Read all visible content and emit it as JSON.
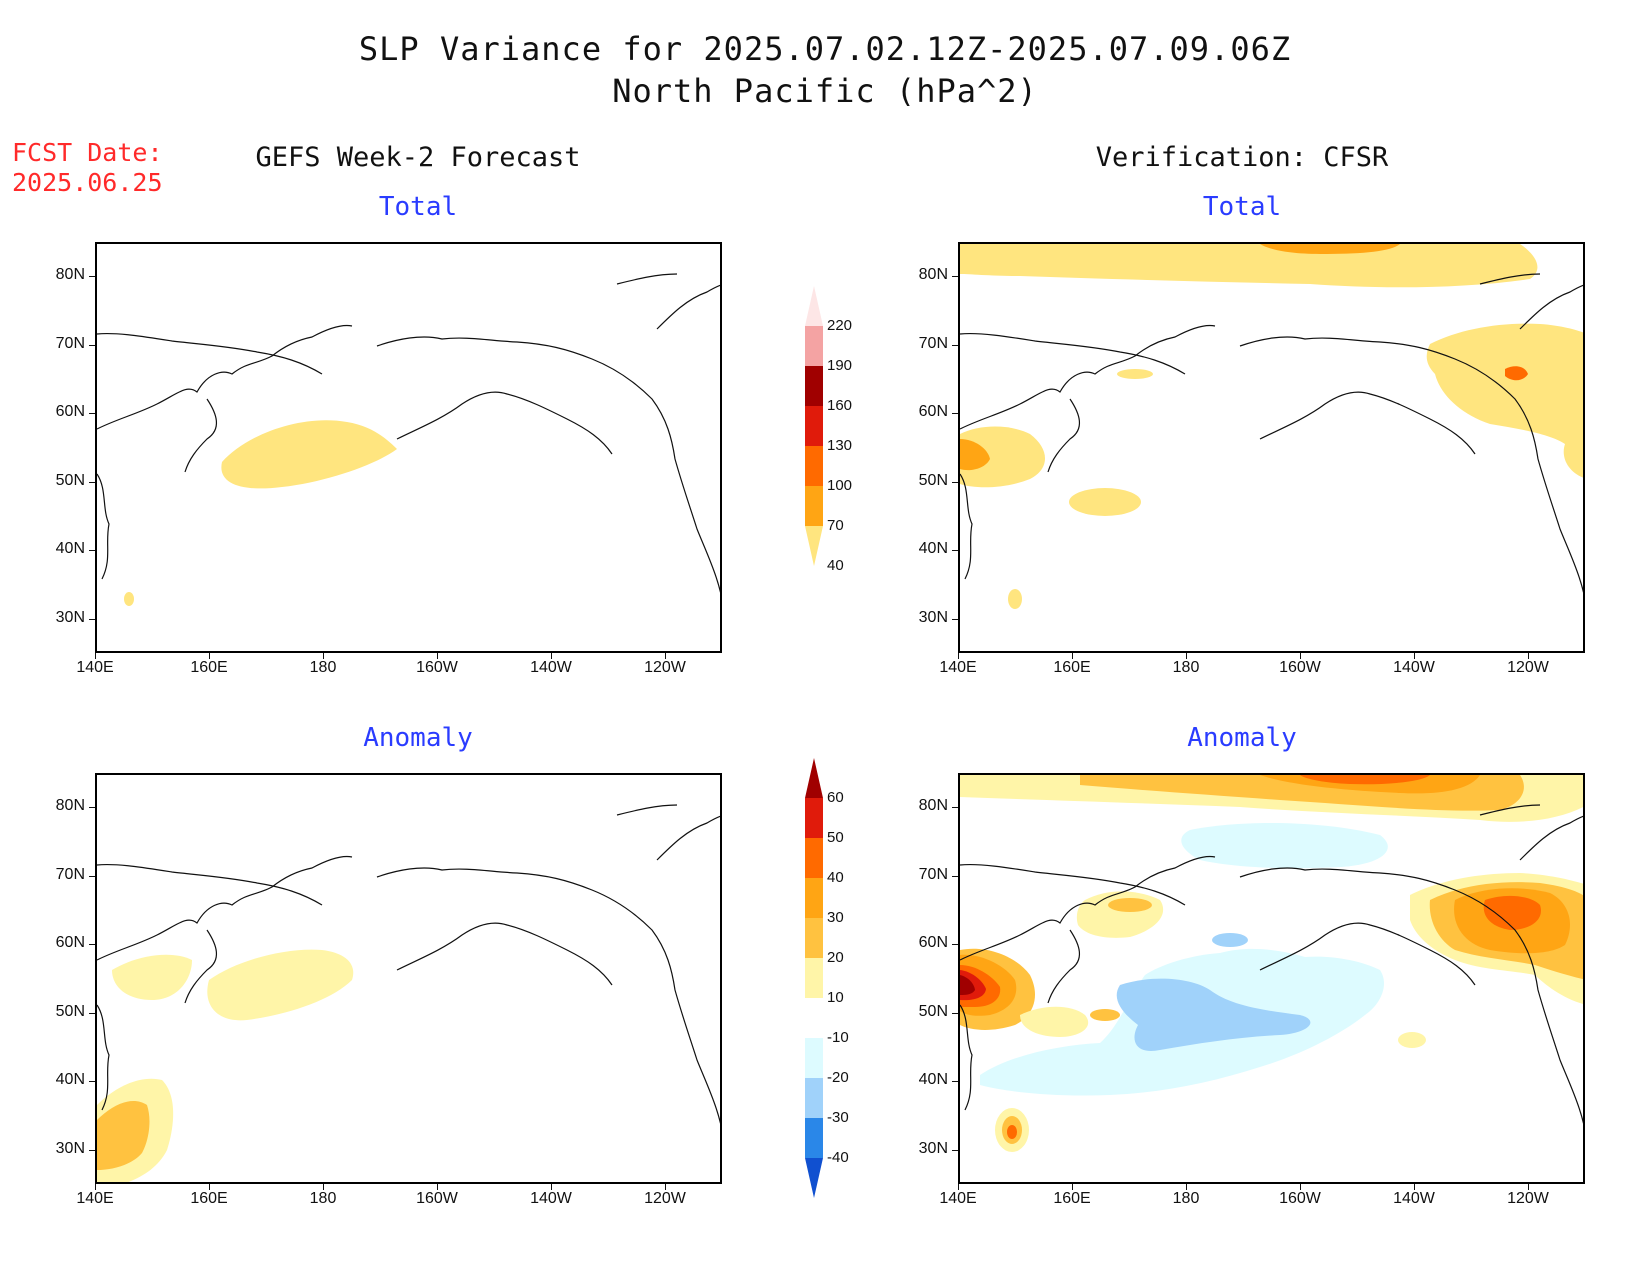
{
  "title": {
    "line1": "SLP Variance for 2025.07.02.12Z-2025.07.09.06Z",
    "line2": "North Pacific (hPa^2)"
  },
  "forecast_date": {
    "label": "FCST Date:",
    "value": "2025.06.25"
  },
  "columns": {
    "left_header": "GEFS Week-2 Forecast",
    "right_header": "Verification: CFSR"
  },
  "panel_titles": {
    "total": "Total",
    "anomaly": "Anomaly"
  },
  "axes": {
    "lat_labels": [
      "80N",
      "70N",
      "60N",
      "50N",
      "40N",
      "30N"
    ],
    "lat_values": [
      80,
      70,
      60,
      50,
      40,
      30
    ],
    "lon_labels": [
      "140E",
      "160E",
      "180",
      "160W",
      "140W",
      "120W"
    ],
    "lon_values": [
      140,
      160,
      180,
      200,
      220,
      240
    ],
    "lat_range": [
      25,
      85
    ],
    "lon_range": [
      140,
      250
    ]
  },
  "colorbars": {
    "total": {
      "labels": [
        "220",
        "190",
        "160",
        "130",
        "100",
        "70",
        "40"
      ],
      "colors": [
        "#fde6e6",
        "#f4a3a3",
        "#a00000",
        "#e01b0b",
        "#ff6a00",
        "#ffa514",
        "#ffe57f"
      ]
    },
    "anomaly": {
      "labels": [
        "60",
        "50",
        "40",
        "30",
        "20",
        "10",
        "-10",
        "-20",
        "-30",
        "-40"
      ],
      "colors": [
        "#a00000",
        "#e01b0b",
        "#ff6a00",
        "#ffa514",
        "#ffc240",
        "#fff5a8",
        "#ffffff",
        "#ddfbff",
        "#a0d2fa",
        "#2a87e8",
        "#1050d0"
      ]
    }
  },
  "colors": {
    "title_text": "#111111",
    "forecast_date": "#ff2a2a",
    "panel_subtitle": "#2a3cff"
  }
}
